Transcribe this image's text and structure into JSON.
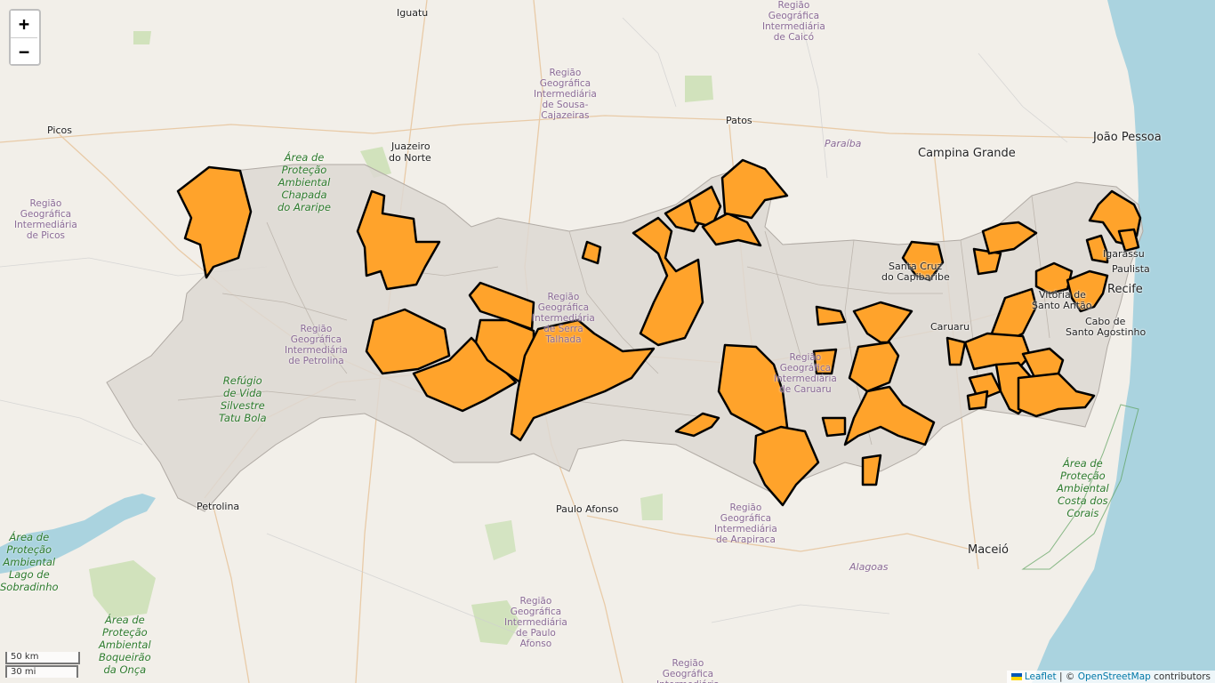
{
  "colors": {
    "land": "#f2efe9",
    "sea": "#aad3df",
    "region_fill": "#ddd8d2",
    "highlight": "#ffa32b",
    "outline": "#000000",
    "park": "#c8dfb0"
  },
  "cities": {
    "iguatu": "Iguatu",
    "picos": "Picos",
    "juazeiro_line1": "Juazeiro",
    "juazeiro_line2": "do Norte",
    "patos": "Patos",
    "campina_grande": "Campina Grande",
    "joao_pessoa": "João Pessoa",
    "santa_cruz_line1": "Santa Cruz",
    "santa_cruz_line2": "do Capibaribe",
    "caruaru": "Caruaru",
    "recife": "Recife",
    "igarassu": "Igarassu",
    "paulista": "Paulista",
    "vitoria_line1": "Vitória de",
    "vitoria_line2": "Santo Antão",
    "cabo_line1": "Cabo de",
    "cabo_line2": "Santo Agostinho",
    "petrolina": "Petrolina",
    "paulo_afonso": "Paulo Afonso",
    "maceio": "Maceió"
  },
  "regions": {
    "caico": "Região\nGeográfica\nIntermediária\nde Caicó",
    "sousa": "Região\nGeográfica\nIntermediária\nde Sousa-\nCajazeiras",
    "picos": "Região\nGeográfica\nIntermediária\nde Picos",
    "petrolina": "Região\nGeográfica\nIntermediária\nde Petrolina",
    "serra_talhada": "Região\nGeográfica\nIntermediária\nde Serra\nTalhada",
    "caruaru": "Região\nGeográfica\nIntermediária\nde Caruaru",
    "arapiraca": "Região\nGeográfica\nIntermediária\nde Arapiraca",
    "paulo_afonso": "Região\nGeográfica\nIntermediária\nde Paulo\nAfonso",
    "bottom": "Região\nGeográfica\nIntermediária"
  },
  "parks": {
    "araripe": "Área de\nProteção\nAmbiental\nChapada\ndo Araripe",
    "tatu_bola": "Refúgio\nde Vida\nSilvestre\nTatu Bola",
    "sobradinho": "Área de\nProteção\nAmbiental\nLago de\nSobradinho",
    "boqueirao": "Área de\nProteção\nAmbiental\nBoqueirão\nda Onça",
    "costa_corais": "Área de\nProteção\nAmbiental\nCosta dos\nCorais"
  },
  "states": {
    "paraiba": "Paraíba",
    "alagoas": "Alagoas"
  },
  "controls": {
    "zoom_in": "+",
    "zoom_out": "−"
  },
  "scale": {
    "km": "50 km",
    "mi": "30 mi"
  },
  "attribution": {
    "leaflet": "Leaflet",
    "separator": " | © ",
    "osm": "OpenStreetMap",
    "suffix": " contributors"
  }
}
